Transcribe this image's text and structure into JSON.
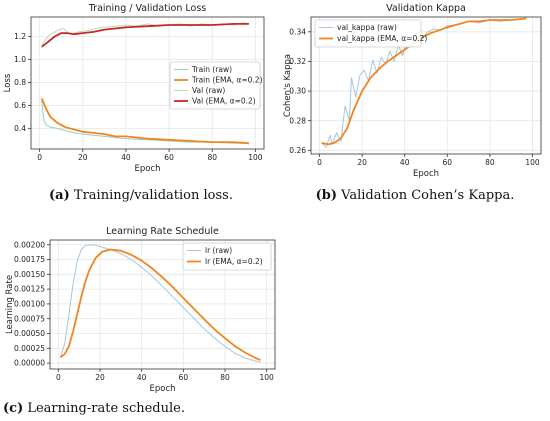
{
  "chart_data": [
    {
      "type": "line",
      "title": "Training / Validation Loss",
      "xlabel": "Epoch",
      "ylabel": "Loss",
      "xlim": [
        -4,
        104
      ],
      "ylim": [
        0.22,
        1.37
      ],
      "xticks": [
        0,
        20,
        40,
        60,
        80,
        100
      ],
      "yticks": [
        0.4,
        0.6,
        0.8,
        1.0,
        1.2
      ],
      "ytick_labels": [
        "0.4",
        "0.6",
        "0.8",
        "1.0",
        "1.2"
      ],
      "grid": true,
      "legend_position": "center-right",
      "caption_label": "(a)",
      "caption_text": "Training/validation loss.",
      "series": [
        {
          "name": "Train (raw)",
          "color": "#8fd1c3",
          "width": 1,
          "x": [
            1,
            2,
            3,
            5,
            8,
            12,
            16,
            20,
            25,
            30,
            35,
            40,
            50,
            60,
            70,
            80,
            90,
            97
          ],
          "y": [
            0.64,
            0.47,
            0.43,
            0.41,
            0.4,
            0.38,
            0.36,
            0.35,
            0.34,
            0.33,
            0.32,
            0.31,
            0.3,
            0.29,
            0.28,
            0.28,
            0.27,
            0.27
          ]
        },
        {
          "name": "Train (EMA, α=0.2)",
          "color": "#f28520",
          "width": 1.8,
          "x": [
            1,
            3,
            5,
            8,
            12,
            16,
            20,
            25,
            30,
            35,
            40,
            50,
            60,
            70,
            80,
            90,
            97
          ],
          "y": [
            0.66,
            0.57,
            0.5,
            0.45,
            0.41,
            0.39,
            0.37,
            0.36,
            0.35,
            0.33,
            0.33,
            0.31,
            0.3,
            0.29,
            0.28,
            0.28,
            0.27
          ]
        },
        {
          "name": "Val (raw)",
          "color": "#b9dcb3",
          "width": 1,
          "x": [
            1,
            3,
            5,
            7,
            9,
            11,
            14,
            18,
            22,
            26,
            30,
            35,
            40,
            45,
            50,
            55,
            60,
            65,
            70,
            75,
            80,
            85,
            90,
            95,
            97
          ],
          "y": [
            1.12,
            1.18,
            1.22,
            1.24,
            1.26,
            1.27,
            1.22,
            1.24,
            1.25,
            1.27,
            1.28,
            1.29,
            1.3,
            1.29,
            1.31,
            1.29,
            1.3,
            1.31,
            1.29,
            1.31,
            1.3,
            1.31,
            1.3,
            1.32,
            1.31
          ]
        },
        {
          "name": "Val (EMA, α=0.2)",
          "color": "#c62828",
          "width": 1.8,
          "x": [
            1,
            3,
            5,
            7,
            10,
            13,
            16,
            20,
            25,
            30,
            35,
            40,
            50,
            60,
            70,
            80,
            90,
            97
          ],
          "y": [
            1.11,
            1.14,
            1.17,
            1.2,
            1.23,
            1.23,
            1.22,
            1.23,
            1.24,
            1.26,
            1.27,
            1.28,
            1.29,
            1.3,
            1.3,
            1.3,
            1.31,
            1.31
          ]
        }
      ]
    },
    {
      "type": "line",
      "title": "Validation Kappa",
      "xlabel": "Epoch",
      "ylabel": "Cohen's Kappa",
      "xlim": [
        -4,
        104
      ],
      "ylim": [
        0.2575,
        0.35
      ],
      "xticks": [
        0,
        20,
        40,
        60,
        80,
        100
      ],
      "yticks": [
        0.26,
        0.28,
        0.3,
        0.32,
        0.34
      ],
      "ytick_labels": [
        "0.26",
        "0.28",
        "0.30",
        "0.32",
        "0.34"
      ],
      "grid": true,
      "legend_position": "top-left",
      "caption_label": "(b)",
      "caption_text": "Validation Cohen’s Kappa.",
      "series": [
        {
          "name": "val_kappa (raw)",
          "color": "#a8c4e0",
          "width": 1,
          "x": [
            1,
            3,
            5,
            6,
            8,
            10,
            12,
            14,
            15,
            17,
            19,
            21,
            23,
            25,
            27,
            29,
            31,
            33,
            35,
            37,
            39,
            41,
            43,
            45,
            48,
            51,
            54,
            57,
            60,
            65,
            70,
            75,
            80,
            85,
            90,
            97
          ],
          "y": [
            0.265,
            0.262,
            0.27,
            0.264,
            0.272,
            0.266,
            0.29,
            0.28,
            0.309,
            0.296,
            0.311,
            0.314,
            0.307,
            0.321,
            0.312,
            0.323,
            0.318,
            0.327,
            0.32,
            0.331,
            0.324,
            0.334,
            0.33,
            0.338,
            0.336,
            0.34,
            0.342,
            0.341,
            0.344,
            0.345,
            0.347,
            0.346,
            0.348,
            0.347,
            0.348,
            0.349
          ]
        },
        {
          "name": "val_kappa (EMA, α=0.2)",
          "color": "#f28520",
          "width": 1.8,
          "x": [
            1,
            4,
            7,
            10,
            13,
            16,
            20,
            24,
            28,
            32,
            36,
            40,
            44,
            48,
            52,
            56,
            60,
            65,
            70,
            75,
            80,
            85,
            90,
            97
          ],
          "y": [
            0.265,
            0.264,
            0.265,
            0.268,
            0.275,
            0.287,
            0.3,
            0.309,
            0.315,
            0.32,
            0.324,
            0.328,
            0.332,
            0.336,
            0.339,
            0.341,
            0.343,
            0.345,
            0.347,
            0.347,
            0.348,
            0.348,
            0.348,
            0.349
          ]
        }
      ]
    },
    {
      "type": "line",
      "title": "Learning Rate Schedule",
      "xlabel": "Epoch",
      "ylabel": "Learning Rate",
      "xlim": [
        -4,
        104
      ],
      "ylim": [
        -0.0001,
        0.00208
      ],
      "xticks": [
        0,
        20,
        40,
        60,
        80,
        100
      ],
      "yticks": [
        0.0,
        0.00025,
        0.0005,
        0.00075,
        0.001,
        0.00125,
        0.0015,
        0.00175,
        0.002
      ],
      "ytick_labels": [
        "0.00000",
        "0.00025",
        "0.00050",
        "0.00075",
        "0.00100",
        "0.00125",
        "0.00150",
        "0.00175",
        "0.00200"
      ],
      "grid": true,
      "legend_position": "top-right",
      "caption_label": "(c)",
      "caption_text": "Learning-rate schedule.",
      "series": [
        {
          "name": "lr (raw)",
          "color": "#a8c4e0",
          "width": 1,
          "x": [
            1,
            3,
            5,
            7,
            9,
            11,
            13,
            15,
            18,
            21,
            25,
            30,
            35,
            40,
            45,
            50,
            55,
            60,
            65,
            70,
            75,
            80,
            85,
            90,
            95,
            97
          ],
          "y": [
            0.0001,
            0.00032,
            0.0008,
            0.00132,
            0.00172,
            0.00192,
            0.00199,
            0.002,
            0.00199,
            0.00196,
            0.00192,
            0.00185,
            0.00175,
            0.00162,
            0.00147,
            0.0013,
            0.00112,
            0.00094,
            0.00076,
            0.00058,
            0.00042,
            0.00028,
            0.00016,
            8e-05,
            3e-05,
            2e-05
          ]
        },
        {
          "name": "lr (EMA, α=0.2)",
          "color": "#f28520",
          "width": 1.8,
          "x": [
            1,
            3,
            5,
            7,
            9,
            11,
            13,
            15,
            18,
            21,
            25,
            30,
            35,
            40,
            45,
            50,
            55,
            60,
            65,
            70,
            75,
            80,
            85,
            90,
            95,
            97
          ],
          "y": [
            0.0001,
            0.00015,
            0.00028,
            0.00052,
            0.00082,
            0.00112,
            0.00138,
            0.00158,
            0.00178,
            0.00188,
            0.00192,
            0.0019,
            0.00183,
            0.00173,
            0.0016,
            0.00145,
            0.00128,
            0.0011,
            0.00092,
            0.00074,
            0.00057,
            0.00042,
            0.00028,
            0.00017,
            8e-05,
            5e-05
          ]
        }
      ]
    }
  ]
}
